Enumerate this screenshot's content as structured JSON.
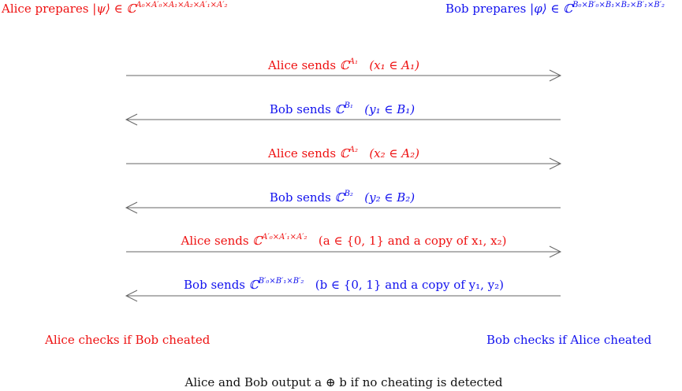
{
  "header": {
    "alice_prepares": "Alice prepares",
    "alice_state": "|ψ⟩ ∈ ℂ",
    "alice_space": "A₀×A′₀×A₁×A₂×A′₁×A′₂",
    "bob_prepares": "Bob prepares",
    "bob_state": "|φ⟩ ∈ ℂ",
    "bob_space": "B₀×B′₀×B₁×B₂×B′₁×B′₂"
  },
  "messages": [
    {
      "label": "Alice sends",
      "space": "ℂ",
      "sup": "A₁",
      "note": "(x₁ ∈ A₁)",
      "color": "#ee1111",
      "direction": "right"
    },
    {
      "label": "Bob sends",
      "space": "ℂ",
      "sup": "B₁",
      "note": "(y₁ ∈ B₁)",
      "color": "#1111ee",
      "direction": "left"
    },
    {
      "label": "Alice sends",
      "space": "ℂ",
      "sup": "A₂",
      "note": "(x₂ ∈ A₂)",
      "color": "#ee1111",
      "direction": "right"
    },
    {
      "label": "Bob sends",
      "space": "ℂ",
      "sup": "B₂",
      "note": "(y₂ ∈ B₂)",
      "color": "#1111ee",
      "direction": "left"
    },
    {
      "label": "Alice sends",
      "space": "ℂ",
      "sup": "A′₀×A′₁×A′₂",
      "note": "(a ∈ {0, 1} and a copy of x₁, x₂)",
      "color": "#ee1111",
      "direction": "right"
    },
    {
      "label": "Bob sends",
      "space": "ℂ",
      "sup": "B′₀×B′₁×B′₂",
      "note": "(b ∈ {0, 1} and a copy of y₁, y₂)",
      "color": "#1111ee",
      "direction": "left"
    }
  ],
  "footer": {
    "alice_check": "Alice checks if Bob cheated",
    "bob_check": "Bob checks if Alice cheated",
    "output": "Alice and Bob output a ⊕ b if no cheating is detected"
  },
  "colors": {
    "alice": "#ee1111",
    "bob": "#1111ee",
    "arrow": "#666666"
  }
}
